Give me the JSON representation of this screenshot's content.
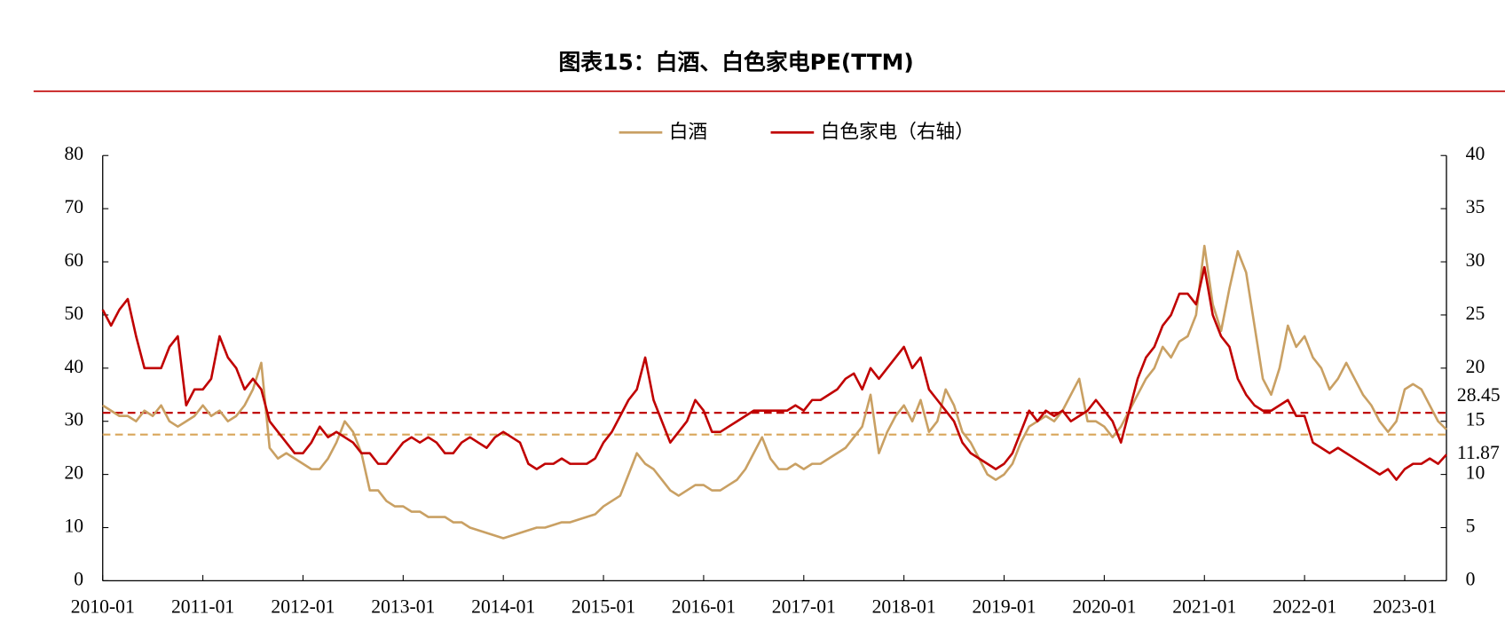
{
  "chart_data": {
    "type": "line",
    "title": "图表15：白酒、白色家电PE(TTM)",
    "x": [
      "2010-01",
      "2010-02",
      "2010-03",
      "2010-04",
      "2010-05",
      "2010-06",
      "2010-07",
      "2010-08",
      "2010-09",
      "2010-10",
      "2010-11",
      "2010-12",
      "2011-01",
      "2011-02",
      "2011-03",
      "2011-04",
      "2011-05",
      "2011-06",
      "2011-07",
      "2011-08",
      "2011-09",
      "2011-10",
      "2011-11",
      "2011-12",
      "2012-01",
      "2012-02",
      "2012-03",
      "2012-04",
      "2012-05",
      "2012-06",
      "2012-07",
      "2012-08",
      "2012-09",
      "2012-10",
      "2012-11",
      "2012-12",
      "2013-01",
      "2013-02",
      "2013-03",
      "2013-04",
      "2013-05",
      "2013-06",
      "2013-07",
      "2013-08",
      "2013-09",
      "2013-10",
      "2013-11",
      "2013-12",
      "2014-01",
      "2014-02",
      "2014-03",
      "2014-04",
      "2014-05",
      "2014-06",
      "2014-07",
      "2014-08",
      "2014-09",
      "2014-10",
      "2014-11",
      "2014-12",
      "2015-01",
      "2015-02",
      "2015-03",
      "2015-04",
      "2015-05",
      "2015-06",
      "2015-07",
      "2015-08",
      "2015-09",
      "2015-10",
      "2015-11",
      "2015-12",
      "2016-01",
      "2016-02",
      "2016-03",
      "2016-04",
      "2016-05",
      "2016-06",
      "2016-07",
      "2016-08",
      "2016-09",
      "2016-10",
      "2016-11",
      "2016-12",
      "2017-01",
      "2017-02",
      "2017-03",
      "2017-04",
      "2017-05",
      "2017-06",
      "2017-07",
      "2017-08",
      "2017-09",
      "2017-10",
      "2017-11",
      "2017-12",
      "2018-01",
      "2018-02",
      "2018-03",
      "2018-04",
      "2018-05",
      "2018-06",
      "2018-07",
      "2018-08",
      "2018-09",
      "2018-10",
      "2018-11",
      "2018-12",
      "2019-01",
      "2019-02",
      "2019-03",
      "2019-04",
      "2019-05",
      "2019-06",
      "2019-07",
      "2019-08",
      "2019-09",
      "2019-10",
      "2019-11",
      "2019-12",
      "2020-01",
      "2020-02",
      "2020-03",
      "2020-04",
      "2020-05",
      "2020-06",
      "2020-07",
      "2020-08",
      "2020-09",
      "2020-10",
      "2020-11",
      "2020-12",
      "2021-01",
      "2021-02",
      "2021-03",
      "2021-04",
      "2021-05",
      "2021-06",
      "2021-07",
      "2021-08",
      "2021-09",
      "2021-10",
      "2021-11",
      "2021-12",
      "2022-01",
      "2022-02",
      "2022-03",
      "2022-04",
      "2022-05",
      "2022-06",
      "2022-07",
      "2022-08",
      "2022-09",
      "2022-10",
      "2022-11",
      "2022-12",
      "2023-01",
      "2023-02",
      "2023-03",
      "2023-04",
      "2023-05",
      "2023-06"
    ],
    "series": [
      {
        "name": "白酒",
        "color": "#c9a063",
        "axis": "y",
        "values": [
          33,
          32,
          31,
          31,
          30,
          32,
          31,
          33,
          30,
          29,
          30,
          31,
          33,
          31,
          32,
          30,
          31,
          33,
          36,
          41,
          25,
          23,
          24,
          23,
          22,
          21,
          21,
          23,
          26,
          30,
          28,
          24,
          17,
          17,
          15,
          14,
          14,
          13,
          13,
          12,
          12,
          12,
          11,
          11,
          10,
          9.5,
          9,
          8.5,
          8,
          8.5,
          9,
          9.5,
          10,
          10,
          10.5,
          11,
          11,
          11.5,
          12,
          12.5,
          14,
          15,
          16,
          20,
          24,
          22,
          21,
          19,
          17,
          16,
          17,
          18,
          18,
          17,
          17,
          18,
          19,
          21,
          24,
          27,
          23,
          21,
          21,
          22,
          21,
          22,
          22,
          23,
          24,
          25,
          27,
          29,
          35,
          24,
          28,
          31,
          33,
          30,
          34,
          28,
          30,
          36,
          33,
          28,
          26,
          23,
          20,
          19,
          20,
          22,
          26,
          29,
          30,
          31,
          30,
          32,
          35,
          38,
          30,
          30,
          29,
          27,
          29,
          32,
          35,
          38,
          40,
          44,
          42,
          45,
          46,
          50,
          63,
          52,
          47,
          55,
          62,
          58,
          48,
          38,
          35,
          40,
          48,
          44,
          46,
          42,
          40,
          36,
          38,
          41,
          38,
          35,
          33,
          30,
          28,
          30,
          36,
          37,
          36,
          33,
          30,
          28.45
        ]
      },
      {
        "name": "白色家电（右轴）",
        "color": "#c00000",
        "axis": "y2",
        "values": [
          25.5,
          24,
          25.5,
          26.5,
          23,
          20,
          20,
          20,
          22,
          23,
          16.5,
          18,
          18,
          19,
          23,
          21,
          20,
          18,
          19,
          18,
          15,
          14,
          13,
          12,
          12,
          13,
          14.5,
          13.5,
          14,
          13.5,
          13,
          12,
          12,
          11,
          11,
          12,
          13,
          13.5,
          13,
          13.5,
          13,
          12,
          12,
          13,
          13.5,
          13,
          12.5,
          13.5,
          14,
          13.5,
          13,
          11,
          10.5,
          11,
          11,
          11.5,
          11,
          11,
          11,
          11.5,
          13,
          14,
          15.5,
          17,
          18,
          21,
          17,
          15,
          13,
          14,
          15,
          17,
          16,
          14,
          14,
          14.5,
          15,
          15.5,
          16,
          16,
          16,
          16,
          16,
          16.5,
          16,
          17,
          17,
          17.5,
          18,
          19,
          19.5,
          18,
          20,
          19,
          20,
          21,
          22,
          20,
          21,
          18,
          17,
          16,
          15,
          13,
          12,
          11.5,
          11,
          10.5,
          11,
          12,
          14,
          16,
          15,
          16,
          15.5,
          16,
          15,
          15.5,
          16,
          17,
          16,
          15,
          13,
          16,
          19,
          21,
          22,
          24,
          25,
          27,
          27,
          26,
          29.5,
          25,
          23,
          22,
          19,
          17.5,
          16.5,
          16,
          16,
          16.5,
          17,
          15.5,
          15.5,
          13,
          12.5,
          12,
          12.5,
          12,
          11.5,
          11,
          10.5,
          10,
          10.5,
          9.5,
          10.5,
          11,
          11,
          11.5,
          11,
          11.87
        ]
      }
    ],
    "xticks": [
      "2010-01",
      "2011-01",
      "2012-01",
      "2013-01",
      "2014-01",
      "2015-01",
      "2016-01",
      "2017-01",
      "2018-01",
      "2019-01",
      "2020-01",
      "2021-01",
      "2022-01",
      "2023-01"
    ],
    "ylim": [
      0,
      80
    ],
    "yticks": [
      0,
      10,
      20,
      30,
      40,
      50,
      60,
      70,
      80
    ],
    "y2lim": [
      0,
      40
    ],
    "y2ticks": [
      0,
      5,
      10,
      15,
      20,
      25,
      30,
      35,
      40
    ],
    "reference_lines": [
      {
        "value": 27.5,
        "axis": "y",
        "color": "#d9a55a"
      },
      {
        "value": 15.8,
        "axis": "y2",
        "color": "#c00000"
      }
    ],
    "end_labels": [
      {
        "value": 28.45,
        "axis": "y",
        "color": "#c9a063"
      },
      {
        "value": 11.87,
        "axis": "y2",
        "color": "#c00000"
      }
    ],
    "legend": "top"
  }
}
